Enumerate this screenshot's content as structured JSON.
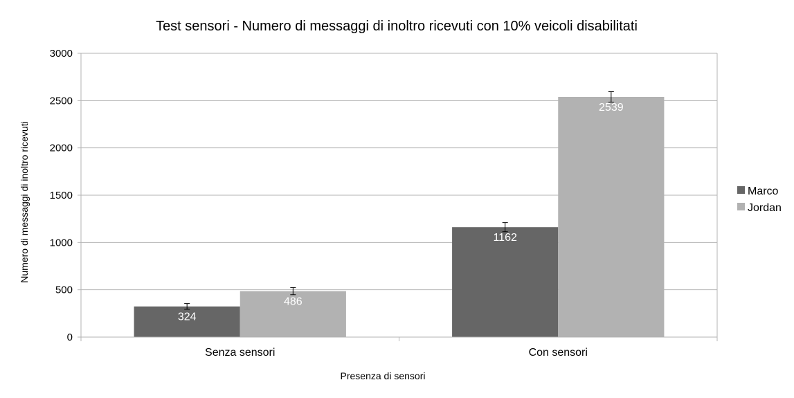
{
  "chart_data": {
    "type": "bar",
    "title": "Test sensori - Numero di messaggi di inoltro ricevuti con 10% veicoli disabilitati",
    "xlabel": "Presenza di sensori",
    "ylabel": "Numero di messaggi di inoltro ricevuti",
    "categories": [
      "Senza sensori",
      "Con sensori"
    ],
    "series": [
      {
        "name": "Marco",
        "values": [
          324,
          1162
        ],
        "error": [
          30,
          48
        ],
        "color": "#666666"
      },
      {
        "name": "Jordan",
        "values": [
          486,
          2539
        ],
        "error": [
          38,
          55
        ],
        "color": "#b2b2b2"
      }
    ],
    "ylim": [
      0,
      3000
    ],
    "yticks": [
      0,
      500,
      1000,
      1500,
      2000,
      2500,
      3000
    ],
    "grid": true,
    "legend": "right",
    "data_labels": true
  }
}
